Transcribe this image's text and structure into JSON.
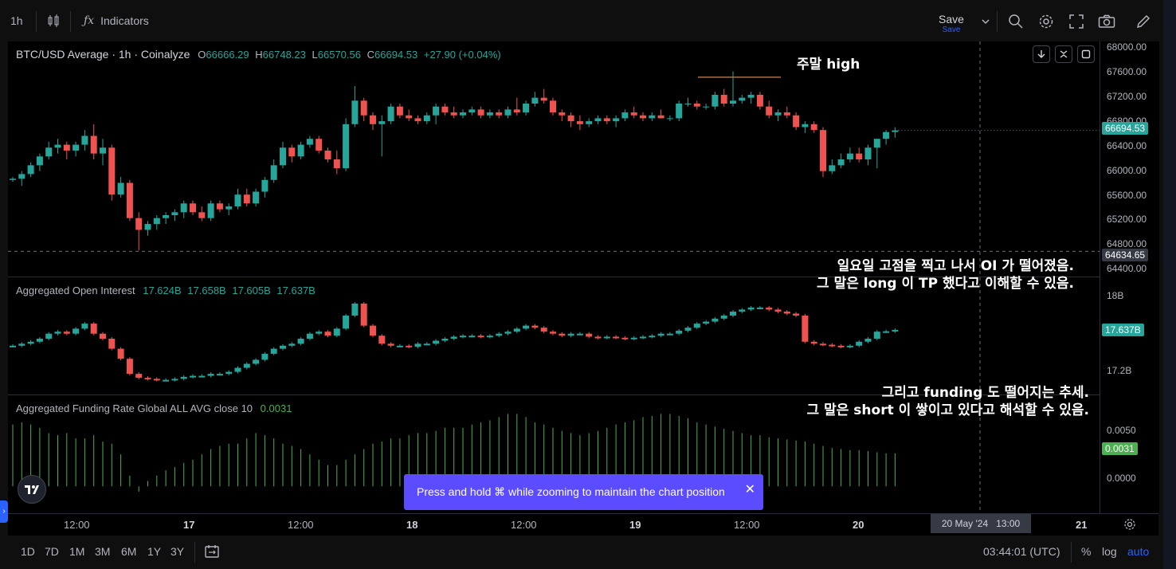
{
  "topbar": {
    "interval": "1h",
    "indicators_label": "Indicators",
    "save_label": "Save",
    "save_sub": "Save"
  },
  "main_pane": {
    "symbol_legend": "BTC/USD Average · 1h · Coinalyze",
    "ohlc": {
      "o_label": "O",
      "o": "66666.29",
      "h_label": "H",
      "h": "66748.23",
      "l_label": "L",
      "l": "66570.56",
      "c_label": "C",
      "c": "66694.53",
      "change": "+27.90 (+0.04%)"
    },
    "price_ticks": [
      "68000.00",
      "67600.00",
      "67200.00",
      "66800.00",
      "66400.00",
      "66000.00",
      "65600.00",
      "65200.00",
      "64800.00",
      "64400.00"
    ],
    "last_price_tag": "66694.53",
    "crosshair_price_tag": "64634.65"
  },
  "oi_pane": {
    "legend": "Aggregated Open Interest",
    "values": [
      "17.624B",
      "17.658B",
      "17.605B",
      "17.637B"
    ],
    "ticks": [
      "18B",
      "17.2B"
    ],
    "last_tag": "17.637B"
  },
  "fr_pane": {
    "legend": "Aggregated Funding Rate Global ALL AVG close 10",
    "value": "0.0031",
    "ticks": [
      "0.0050",
      "0.0000"
    ],
    "last_tag": "0.0031"
  },
  "annotations": {
    "weekend_high": "주말 high",
    "oi_line1": "일요일 고점을 찍고 나서 OI 가 떨어졌음.",
    "oi_line2": "그 말은 long 이 TP 했다고 이해할 수 있음.",
    "fr_line1": "그리고 funding 도 떨어지는 추세.",
    "fr_line2": "그 말은 short 이 쌓이고 있다고 해석할 수 있음."
  },
  "time_axis": {
    "labels": [
      "12:00",
      "17",
      "12:00",
      "18",
      "12:00",
      "19",
      "12:00",
      "20",
      "21"
    ],
    "crosshair_date": "20 May '24",
    "crosshair_time": "13:00"
  },
  "bottombar": {
    "ranges": [
      "1D",
      "7D",
      "1M",
      "3M",
      "6M",
      "1Y",
      "3Y"
    ],
    "clock": "03:44:01 (UTC)",
    "percent": "%",
    "log": "log",
    "auto": "auto"
  },
  "toast": {
    "message": "Press and hold ⌘ while zooming to maintain the chart position"
  },
  "colors": {
    "up": "#26a69a",
    "down": "#ef5350",
    "accent": "#2962ff",
    "toast_bg": "#5b4cff",
    "funding_bar": "#4caf50"
  },
  "chart_data": {
    "type": "candlestick",
    "symbol": "BTC/USD Average · 1h · Coinalyze",
    "interval": "1h",
    "main": {
      "y_range": [
        64300,
        68100
      ],
      "ohlc": [
        [
          65850,
          65900,
          65820,
          65870
        ],
        [
          65870,
          66000,
          65750,
          65950
        ],
        [
          65950,
          66150,
          65900,
          66100
        ],
        [
          66100,
          66300,
          66000,
          66250
        ],
        [
          66250,
          66500,
          66200,
          66400
        ],
        [
          66400,
          66550,
          66300,
          66450
        ],
        [
          66450,
          66500,
          66200,
          66350
        ],
        [
          66350,
          66500,
          66250,
          66450
        ],
        [
          66450,
          66700,
          66350,
          66600
        ],
        [
          66600,
          66800,
          66200,
          66300
        ],
        [
          66300,
          66550,
          66100,
          66400
        ],
        [
          66400,
          66450,
          65500,
          65600
        ],
        [
          65600,
          65900,
          65550,
          65800
        ],
        [
          65800,
          65850,
          65150,
          65200
        ],
        [
          65200,
          65300,
          64650,
          65000
        ],
        [
          65000,
          65150,
          64900,
          65100
        ],
        [
          65100,
          65250,
          65000,
          65200
        ],
        [
          65200,
          65300,
          65100,
          65250
        ],
        [
          65250,
          65350,
          65150,
          65300
        ],
        [
          65300,
          65500,
          65200,
          65450
        ],
        [
          65450,
          65500,
          65250,
          65300
        ],
        [
          65300,
          65400,
          65150,
          65200
        ],
        [
          65200,
          65500,
          65150,
          65450
        ],
        [
          65450,
          65500,
          65300,
          65350
        ],
        [
          65350,
          65450,
          65250,
          65400
        ],
        [
          65400,
          65700,
          65350,
          65600
        ],
        [
          65600,
          65700,
          65400,
          65450
        ],
        [
          65450,
          65700,
          65400,
          65650
        ],
        [
          65650,
          65900,
          65550,
          65850
        ],
        [
          65850,
          66200,
          65800,
          66100
        ],
        [
          66100,
          66500,
          66050,
          66400
        ],
        [
          66400,
          66450,
          66150,
          66250
        ],
        [
          66250,
          66500,
          66200,
          66450
        ],
        [
          66450,
          66600,
          66400,
          66550
        ],
        [
          66550,
          66600,
          66300,
          66350
        ],
        [
          66350,
          66400,
          66150,
          66200
        ],
        [
          66200,
          66350,
          65950,
          66050
        ],
        [
          66050,
          66900,
          66000,
          66800
        ],
        [
          66800,
          67450,
          66750,
          67200
        ],
        [
          67200,
          67250,
          66850,
          66950
        ],
        [
          66950,
          67000,
          66700,
          66800
        ],
        [
          66800,
          66950,
          66250,
          66850
        ],
        [
          66850,
          67150,
          66800,
          67100
        ],
        [
          67100,
          67150,
          66900,
          66950
        ],
        [
          66950,
          67050,
          66850,
          66900
        ],
        [
          66900,
          66950,
          66800,
          66850
        ],
        [
          66850,
          67000,
          66800,
          66950
        ],
        [
          66950,
          67150,
          66800,
          67100
        ],
        [
          67100,
          67150,
          66950,
          67000
        ],
        [
          67000,
          67100,
          66900,
          66950
        ],
        [
          66950,
          67050,
          66900,
          67000
        ],
        [
          67000,
          67100,
          66950,
          67050
        ],
        [
          67050,
          67100,
          66900,
          66950
        ],
        [
          66950,
          67050,
          66900,
          67000
        ],
        [
          67000,
          67050,
          66900,
          66950
        ],
        [
          66950,
          67100,
          66900,
          67050
        ],
        [
          67050,
          67250,
          66950,
          67000
        ],
        [
          67000,
          67200,
          66950,
          67150
        ],
        [
          67150,
          67350,
          67100,
          67250
        ],
        [
          67250,
          67400,
          67150,
          67200
        ],
        [
          67200,
          67250,
          66950,
          67000
        ],
        [
          67000,
          67050,
          66850,
          66950
        ],
        [
          66950,
          67000,
          66750,
          66850
        ],
        [
          66850,
          66950,
          66700,
          66800
        ],
        [
          66800,
          66900,
          66750,
          66850
        ],
        [
          66850,
          66950,
          66800,
          66900
        ],
        [
          66900,
          66950,
          66800,
          66850
        ],
        [
          66850,
          66950,
          66750,
          66900
        ],
        [
          66900,
          67050,
          66850,
          67000
        ],
        [
          67000,
          67100,
          66900,
          66950
        ],
        [
          66950,
          67000,
          66850,
          66900
        ],
        [
          66900,
          67000,
          66850,
          66950
        ],
        [
          66950,
          67050,
          66900,
          66900
        ],
        [
          66900,
          66950,
          66850,
          66900
        ],
        [
          66900,
          67200,
          66850,
          67150
        ],
        [
          67150,
          67250,
          67100,
          67150
        ],
        [
          67150,
          67200,
          67050,
          67100
        ],
        [
          67100,
          67150,
          67050,
          67100
        ],
        [
          67100,
          67350,
          67050,
          67300
        ],
        [
          67300,
          67400,
          67100,
          67150
        ],
        [
          67150,
          67700,
          67100,
          67200
        ],
        [
          67200,
          67300,
          67150,
          67250
        ],
        [
          67250,
          67350,
          67150,
          67300
        ],
        [
          67300,
          67350,
          67050,
          67100
        ],
        [
          67100,
          67200,
          66900,
          66950
        ],
        [
          66950,
          67050,
          66850,
          67000
        ],
        [
          67000,
          67100,
          66900,
          66950
        ],
        [
          66950,
          67000,
          66700,
          66750
        ],
        [
          66750,
          66850,
          66650,
          66800
        ],
        [
          66800,
          66850,
          66650,
          66700
        ],
        [
          66700,
          66750,
          65900,
          66000
        ],
        [
          66000,
          66200,
          65950,
          66100
        ],
        [
          66100,
          66300,
          66050,
          66200
        ],
        [
          66200,
          66400,
          66150,
          66300
        ],
        [
          66300,
          66400,
          66150,
          66200
        ],
        [
          66200,
          66450,
          66100,
          66400
        ],
        [
          66400,
          66550,
          66050,
          66550
        ],
        [
          66550,
          66700,
          66450,
          66666
        ],
        [
          66666,
          66748,
          66570,
          66694
        ]
      ],
      "weekend_high_line": 67600,
      "crosshair_price": 64634.65
    },
    "open_interest": {
      "y_range": [
        17.05,
        18.05
      ],
      "values": [
        17.48,
        17.5,
        17.52,
        17.55,
        17.6,
        17.62,
        17.6,
        17.65,
        17.7,
        17.6,
        17.55,
        17.45,
        17.35,
        17.2,
        17.16,
        17.15,
        17.14,
        17.14,
        17.15,
        17.17,
        17.18,
        17.18,
        17.2,
        17.2,
        17.22,
        17.26,
        17.3,
        17.34,
        17.4,
        17.45,
        17.48,
        17.5,
        17.55,
        17.6,
        17.62,
        17.58,
        17.65,
        17.78,
        17.9,
        17.68,
        17.58,
        17.5,
        17.48,
        17.48,
        17.47,
        17.5,
        17.5,
        17.53,
        17.55,
        17.57,
        17.58,
        17.58,
        17.57,
        17.58,
        17.6,
        17.62,
        17.65,
        17.68,
        17.66,
        17.62,
        17.6,
        17.58,
        17.6,
        17.6,
        17.57,
        17.56,
        17.57,
        17.56,
        17.55,
        17.56,
        17.57,
        17.58,
        17.6,
        17.6,
        17.63,
        17.66,
        17.7,
        17.72,
        17.75,
        17.78,
        17.82,
        17.84,
        17.86,
        17.86,
        17.84,
        17.82,
        17.8,
        17.78,
        17.52,
        17.5,
        17.49,
        17.48,
        17.47,
        17.48,
        17.52,
        17.55,
        17.62,
        17.624,
        17.637
      ]
    },
    "funding_rate": {
      "y_range": [
        -0.002,
        0.0075
      ],
      "values": [
        0.0058,
        0.006,
        0.0058,
        0.0055,
        0.005,
        0.0048,
        0.005,
        0.0045,
        0.0045,
        0.0048,
        0.0042,
        0.004,
        0.003,
        0.001,
        -0.0005,
        0.0005,
        0.001,
        0.0015,
        0.0018,
        0.0022,
        0.0025,
        0.003,
        0.0035,
        0.0038,
        0.004,
        0.004,
        0.0045,
        0.005,
        0.0048,
        0.0045,
        0.004,
        0.0038,
        0.0035,
        0.003,
        0.0025,
        0.002,
        0.002,
        0.0025,
        0.003,
        0.0035,
        0.004,
        0.0042,
        0.0045,
        0.0045,
        0.0048,
        0.005,
        0.005,
        0.0052,
        0.0055,
        0.0055,
        0.0055,
        0.0058,
        0.006,
        0.0062,
        0.0065,
        0.0068,
        0.0068,
        0.0065,
        0.006,
        0.0058,
        0.0055,
        0.0052,
        0.005,
        0.0048,
        0.005,
        0.0052,
        0.0055,
        0.0058,
        0.006,
        0.0062,
        0.0065,
        0.0066,
        0.0068,
        0.0068,
        0.0066,
        0.0064,
        0.006,
        0.0058,
        0.0056,
        0.0054,
        0.0052,
        0.005,
        0.0048,
        0.0048,
        0.0046,
        0.0045,
        0.0044,
        0.0043,
        0.0042,
        0.004,
        0.0038,
        0.0036,
        0.0035,
        0.0034,
        0.0034,
        0.0033,
        0.0032,
        0.0031,
        0.0031
      ]
    },
    "x_labels": [
      "12:00",
      "17",
      "12:00",
      "18",
      "12:00",
      "19",
      "12:00",
      "20",
      "21"
    ]
  }
}
